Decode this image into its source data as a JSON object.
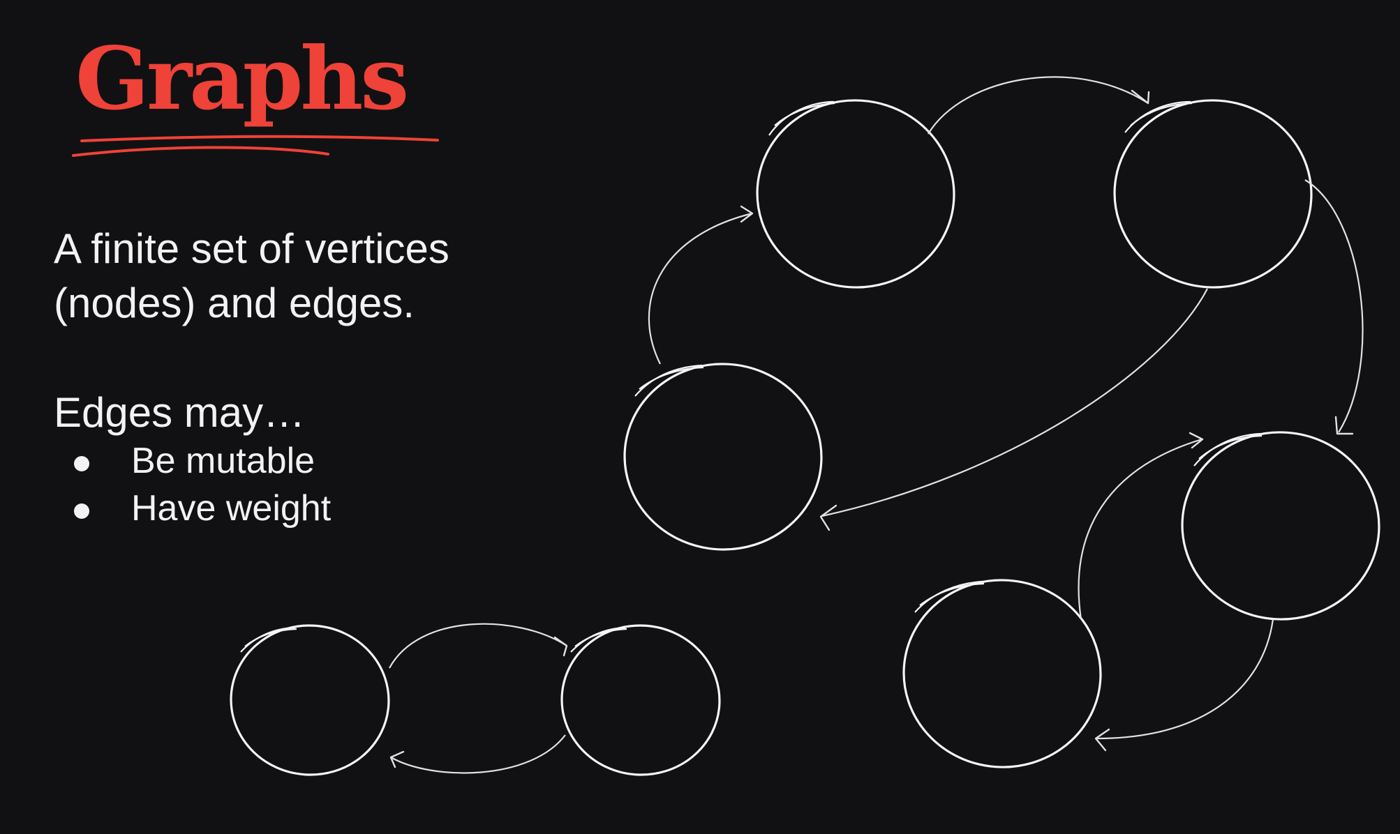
{
  "slide": {
    "title": "Graphs",
    "description": "A finite set of vertices (nodes) and edges.",
    "edges_heading": "Edges may…",
    "bullets": [
      "Be mutable",
      "Have weight"
    ]
  },
  "colors": {
    "background": "#111113",
    "title": "#ef4238",
    "text": "#f2f2f2",
    "strokes": "#f5f5f5"
  },
  "diagram": {
    "style": "hand-drawn",
    "graphs": [
      {
        "name": "large-directed-graph",
        "nodes": 4,
        "edges": [
          {
            "from": "top-left",
            "to": "top-right"
          },
          {
            "from": "top-right",
            "to": "mid-right"
          },
          {
            "from": "top-right",
            "to": "mid-left"
          },
          {
            "from": "mid-left",
            "to": "top-left"
          }
        ]
      },
      {
        "name": "bottom-right-graph",
        "nodes": 2,
        "edges": [
          {
            "from": "bottom-right",
            "to": "mid-right"
          },
          {
            "from": "mid-right",
            "to": "bottom-right"
          }
        ]
      },
      {
        "name": "bottom-left-graph",
        "nodes": 2,
        "edges": [
          {
            "from": "left",
            "to": "right"
          },
          {
            "from": "right",
            "to": "left"
          }
        ]
      }
    ]
  }
}
